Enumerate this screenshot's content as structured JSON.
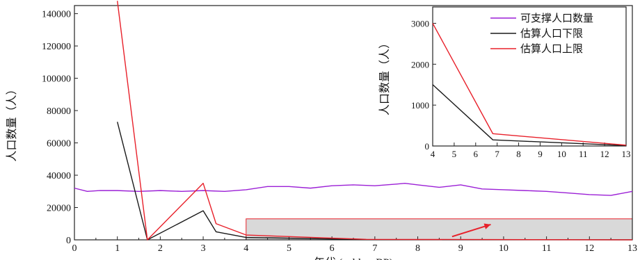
{
  "chart_data": [
    {
      "type": "line",
      "xlabel": "年代 (cal kyr BP)",
      "ylabel": "人口数量（人）",
      "xlim": [
        0,
        13
      ],
      "ylim": [
        0,
        145000
      ],
      "x_ticks": [
        "0",
        "1",
        "2",
        "3",
        "4",
        "5",
        "6",
        "7",
        "8",
        "9",
        "10",
        "11",
        "12",
        "13"
      ],
      "y_ticks": [
        "0",
        "20000",
        "40000",
        "60000",
        "80000",
        "100000",
        "120000",
        "140000"
      ],
      "series": [
        {
          "name": "可支撑人口数量",
          "color": "#9b1fd6",
          "x": [
            0,
            0.3,
            0.6,
            1.0,
            1.5,
            2.0,
            2.5,
            3.0,
            3.5,
            4.0,
            4.5,
            5.0,
            5.5,
            6.0,
            6.5,
            7.0,
            7.5,
            7.7,
            8.0,
            8.5,
            9.0,
            9.5,
            10.0,
            10.5,
            11.0,
            11.5,
            12.0,
            12.5,
            13.0
          ],
          "y": [
            32000,
            30000,
            30500,
            30500,
            30000,
            30500,
            30000,
            30500,
            30000,
            31000,
            33000,
            33000,
            32000,
            33500,
            34000,
            33500,
            34500,
            35000,
            34000,
            32500,
            34000,
            31500,
            31000,
            30500,
            30000,
            29000,
            28000,
            27500,
            30000
          ]
        },
        {
          "name": "估算人口下限",
          "color": "#1a1a1a",
          "x": [
            1.0,
            1.7,
            3.0,
            3.3,
            4.0,
            6.8,
            13.0
          ],
          "y": [
            73000,
            0,
            18000,
            5000,
            1500,
            150,
            10
          ]
        },
        {
          "name": "估算人口上限",
          "color": "#e8202a",
          "x": [
            1.0,
            1.7,
            3.0,
            3.3,
            4.0,
            6.8,
            13.0
          ],
          "y": [
            148000,
            0,
            35000,
            10000,
            3000,
            300,
            20
          ]
        }
      ],
      "highlight_region": {
        "x": [
          4,
          13
        ],
        "y": [
          0,
          13000
        ],
        "color": "#d9d9d9"
      },
      "legend_position": "top-right"
    },
    {
      "type": "line",
      "subplot": "inset",
      "xlabel": "",
      "ylabel": "人口数量（人）",
      "xlim": [
        4,
        13
      ],
      "ylim": [
        0,
        3400
      ],
      "x_ticks": [
        "4",
        "5",
        "6",
        "7",
        "8",
        "9",
        "10",
        "11",
        "12",
        "13"
      ],
      "y_ticks": [
        "0",
        "1000",
        "2000",
        "3000"
      ],
      "series": [
        {
          "name": "估算人口下限",
          "color": "#1a1a1a",
          "x": [
            4.0,
            6.8,
            13.0
          ],
          "y": [
            1500,
            150,
            10
          ]
        },
        {
          "name": "估算人口上限",
          "color": "#e8202a",
          "x": [
            4.0,
            6.8,
            13.0
          ],
          "y": [
            3000,
            300,
            20
          ]
        }
      ]
    }
  ]
}
